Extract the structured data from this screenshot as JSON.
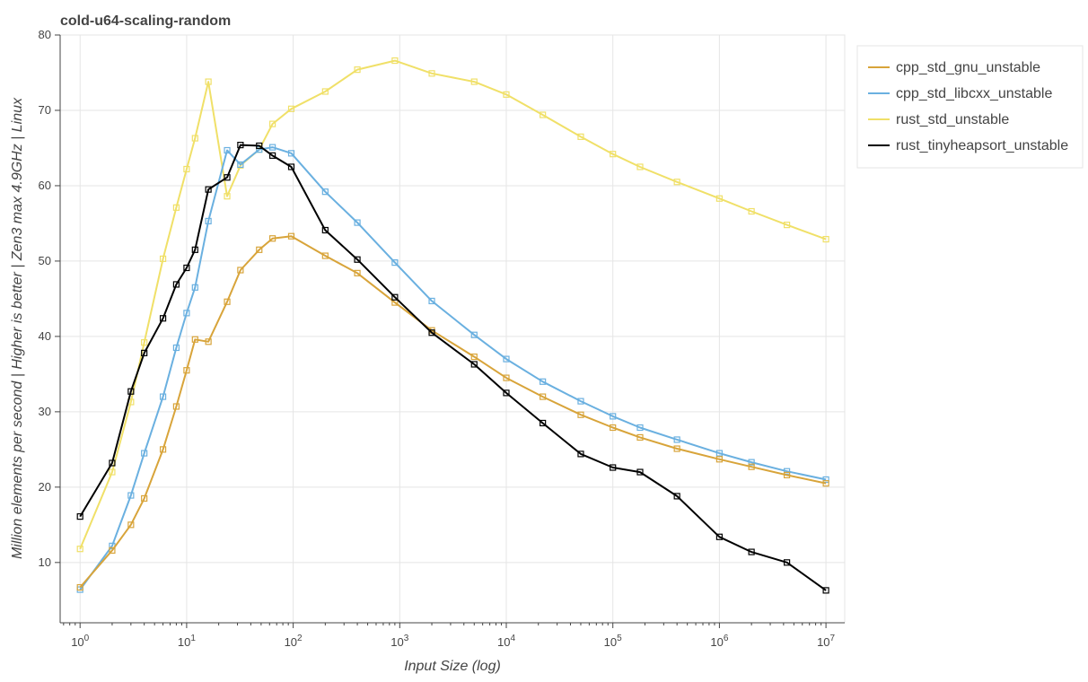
{
  "chart_data": {
    "type": "line",
    "title": "cold-u64-scaling-random",
    "xlabel": "Input Size (log)",
    "ylabel": "Million elements per second | Higher is better | Zen3 max 4.9GHz | Linux",
    "x_scale": "log10",
    "xlim": [
      0.65,
      15000000
    ],
    "ylim": [
      2,
      80
    ],
    "x_ticks": [
      1,
      10,
      100,
      1000,
      10000,
      100000,
      1000000,
      10000000
    ],
    "x_tick_labels": [
      {
        "base": "10",
        "exp": "0"
      },
      {
        "base": "10",
        "exp": "1"
      },
      {
        "base": "10",
        "exp": "2"
      },
      {
        "base": "10",
        "exp": "3"
      },
      {
        "base": "10",
        "exp": "4"
      },
      {
        "base": "10",
        "exp": "5"
      },
      {
        "base": "10",
        "exp": "6"
      },
      {
        "base": "10",
        "exp": "7"
      }
    ],
    "y_ticks": [
      10,
      20,
      30,
      40,
      50,
      60,
      70,
      80
    ],
    "y_tick_labels": [
      "10",
      "20",
      "30",
      "40",
      "50",
      "60",
      "70",
      "80"
    ],
    "grid": true,
    "legend_position": "top-right",
    "marker": "square",
    "x": [
      1,
      2,
      3,
      4,
      6,
      8,
      10,
      12,
      16,
      24,
      32,
      48,
      64,
      96,
      200,
      400,
      900,
      2000,
      5000,
      10000,
      22000,
      50000,
      100000,
      180000,
      400000,
      1000000,
      2000000,
      4300000,
      10000000
    ],
    "series": [
      {
        "name": "cpp_std_gnu_unstable",
        "color": "#d8a43a",
        "values": [
          6.7,
          11.6,
          15.0,
          18.5,
          25.0,
          30.7,
          35.5,
          39.6,
          39.3,
          44.6,
          48.8,
          51.5,
          53.0,
          53.3,
          50.7,
          48.4,
          44.5,
          40.8,
          37.3,
          34.5,
          32.0,
          29.6,
          27.9,
          26.6,
          25.1,
          23.7,
          22.7,
          21.6,
          20.5
        ]
      },
      {
        "name": "cpp_std_libcxx_unstable",
        "color": "#6ab0e0",
        "values": [
          6.4,
          12.2,
          18.9,
          24.5,
          32.0,
          38.5,
          43.1,
          46.5,
          55.3,
          64.7,
          62.8,
          64.8,
          65.1,
          64.3,
          59.2,
          55.1,
          49.8,
          44.7,
          40.2,
          37.0,
          34.0,
          31.4,
          29.4,
          27.9,
          26.3,
          24.5,
          23.3,
          22.1,
          21.0
        ]
      },
      {
        "name": "rust_std_unstable",
        "color": "#f0e068",
        "values": [
          11.8,
          22.0,
          31.3,
          39.2,
          50.3,
          57.1,
          62.2,
          66.3,
          73.8,
          58.6,
          62.7,
          64.8,
          68.2,
          70.2,
          72.5,
          75.4,
          76.6,
          74.9,
          73.8,
          72.1,
          69.4,
          66.5,
          64.2,
          62.5,
          60.5,
          58.3,
          56.6,
          54.8,
          52.9
        ]
      },
      {
        "name": "rust_tinyheapsort_unstable",
        "color": "#000000",
        "values": [
          16.1,
          23.2,
          32.7,
          37.8,
          42.4,
          46.9,
          49.1,
          51.5,
          59.5,
          61.1,
          65.4,
          65.3,
          64.0,
          62.5,
          54.1,
          50.2,
          45.2,
          40.5,
          36.3,
          32.5,
          28.5,
          24.4,
          22.6,
          22.0,
          18.8,
          13.4,
          11.4,
          10.0,
          6.3
        ]
      }
    ]
  }
}
